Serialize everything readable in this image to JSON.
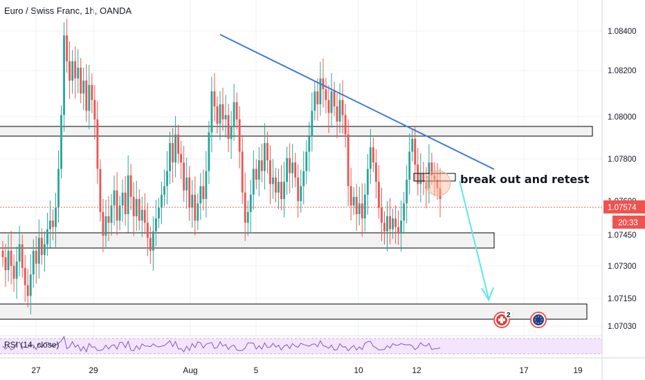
{
  "header": {
    "title": "Euro / Swiss Franc, 1h, OANDA"
  },
  "chart_data": {
    "type": "candlestick",
    "symbol": "Euro / Swiss Franc",
    "interval": "1h",
    "source": "OANDA",
    "y_ticks": [
      "1.08400",
      "1.08200",
      "1.08000",
      "1.07800",
      "1.07600",
      "1.07450",
      "1.07300",
      "1.07150",
      "1.07030"
    ],
    "y_tick_values": [
      1.084,
      1.082,
      1.08,
      1.078,
      1.076,
      1.0745,
      1.073,
      1.0715,
      1.0703
    ],
    "ylim": [
      1.0694,
      1.0858
    ],
    "x_ticks": [
      "27",
      "29",
      "Aug",
      "5",
      "10",
      "12",
      "17",
      "19"
    ],
    "last_price": "1.07574",
    "last_price_value": 1.07574,
    "countdown": "20:33",
    "colors": {
      "up": "#26a69a",
      "down": "#ef5350",
      "trendline": "#3a7bd5",
      "arrow": "#5ce6f0",
      "last_price": "#ef5350"
    },
    "candle_closes": [
      1.0735,
      1.0729,
      1.0738,
      1.0731,
      1.0725,
      1.0733,
      1.0741,
      1.073,
      1.0722,
      1.0717,
      1.0727,
      1.0738,
      1.0732,
      1.0744,
      1.0736,
      1.0741,
      1.0748,
      1.0752,
      1.0749,
      1.0758,
      1.0776,
      1.0801,
      1.0838,
      1.0826,
      1.0817,
      1.0826,
      1.0818,
      1.0823,
      1.0811,
      1.0817,
      1.0803,
      1.0815,
      1.0808,
      1.0799,
      1.0776,
      1.0756,
      1.0745,
      1.0754,
      1.0751,
      1.0759,
      1.0766,
      1.0752,
      1.0759,
      1.0765,
      1.0755,
      1.0773,
      1.0763,
      1.0754,
      1.0762,
      1.0752,
      1.0757,
      1.0751,
      1.0744,
      1.0738,
      1.0747,
      1.0753,
      1.0758,
      1.0764,
      1.0768,
      1.0775,
      1.0788,
      1.0779,
      1.0792,
      1.0783,
      1.0779,
      1.0766,
      1.0772,
      1.0758,
      1.0764,
      1.0752,
      1.076,
      1.0768,
      1.0762,
      1.0775,
      1.0793,
      1.0812,
      1.0805,
      1.0797,
      1.0806,
      1.0799,
      1.0801,
      1.079,
      1.0796,
      1.0807,
      1.0799,
      1.0784,
      1.0765,
      1.0751,
      1.0756,
      1.0764,
      1.0776,
      1.0771,
      1.078,
      1.0775,
      1.0788,
      1.078,
      1.0769,
      1.0772,
      1.0765,
      1.077,
      1.0762,
      1.077,
      1.0781,
      1.0774,
      1.0779,
      1.0772,
      1.0761,
      1.0768,
      1.0775,
      1.0784,
      1.0791,
      1.0803,
      1.0812,
      1.0806,
      1.0818,
      1.0813,
      1.0808,
      1.0802,
      1.0812,
      1.0805,
      1.0798,
      1.0808,
      1.0801,
      1.0792,
      1.0768,
      1.0759,
      1.0763,
      1.0755,
      1.076,
      1.0753,
      1.0764,
      1.0776,
      1.0786,
      1.0779,
      1.077,
      1.0758,
      1.0751,
      1.0747,
      1.0754,
      1.0748,
      1.0753,
      1.0749,
      1.0746,
      1.0752,
      1.076,
      1.0771,
      1.0784,
      1.079,
      1.0778,
      1.0769,
      1.0774,
      1.077,
      1.0767,
      1.0779,
      1.0773,
      1.0771,
      1.0767,
      1.0762
    ]
  },
  "annotations": {
    "text": "break out and retest",
    "zones": [
      {
        "top": 1.0795,
        "bottom": 1.079,
        "x_end_frac": 0.92
      },
      {
        "top": 1.0747,
        "bottom": 1.074,
        "x_end_frac": 0.766
      },
      {
        "top": 1.0712,
        "bottom": 1.0704,
        "x_end_frac": 0.91
      }
    ]
  },
  "rsi": {
    "label": "RSI (14, close)"
  },
  "event_icons": [
    {
      "name": "swiss-flag-icon",
      "badge": "2"
    },
    {
      "name": "euro-flag-icon",
      "badge": ""
    }
  ]
}
